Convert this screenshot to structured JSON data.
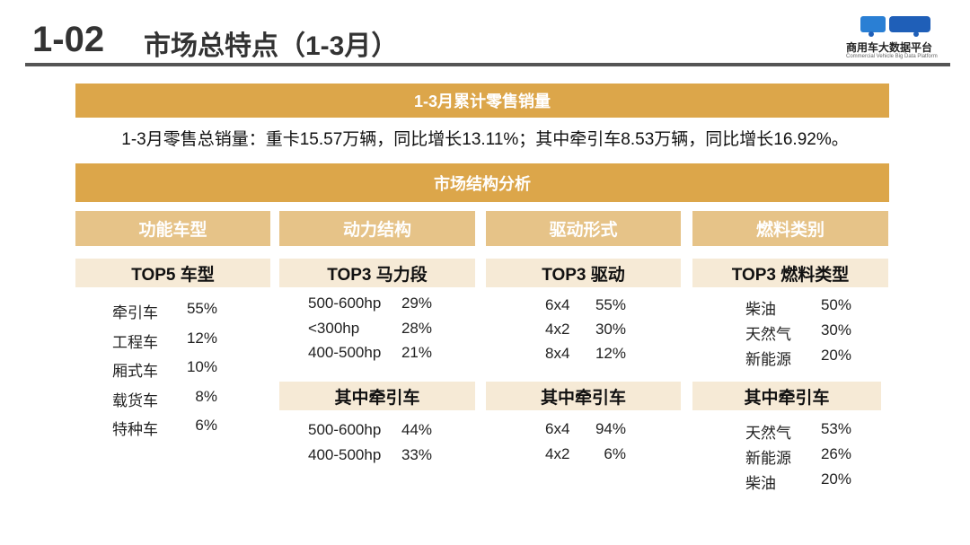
{
  "header": {
    "number": "1-02",
    "title": "市场总特点（1-3月）",
    "logo_text": "商用车大数据平台",
    "logo_subtext": "Commercial Vehicle Big Data Platform"
  },
  "banner1": "1-3月累计零售销量",
  "summary": "1-3月零售总销量：重卡15.57万辆，同比增长13.11%；其中牵引车8.53万辆，同比增长16.92%。",
  "banner2": "市场结构分析",
  "colors": {
    "banner": "#dca64a",
    "column_header": "#e6c388",
    "subheader": "#f6ead6"
  },
  "columns": [
    {
      "header": "功能车型",
      "sub1": "TOP5 车型",
      "list1": [
        [
          "牵引车",
          "55%"
        ],
        [
          "工程车",
          "12%"
        ],
        [
          "厢式车",
          "10%"
        ],
        [
          "载货车",
          "8%"
        ],
        [
          "特种车",
          "6%"
        ]
      ]
    },
    {
      "header": "动力结构",
      "sub1": "TOP3 马力段",
      "list1": [
        [
          "500-600hp",
          "29%"
        ],
        [
          "<300hp",
          "28%"
        ],
        [
          "400-500hp",
          "21%"
        ]
      ],
      "sub2": "其中牵引车",
      "list2": [
        [
          "500-600hp",
          "44%"
        ],
        [
          "400-500hp",
          "33%"
        ]
      ]
    },
    {
      "header": "驱动形式",
      "sub1": "TOP3 驱动",
      "list1": [
        [
          "6x4",
          "55%"
        ],
        [
          "4x2",
          "30%"
        ],
        [
          "8x4",
          "12%"
        ]
      ],
      "sub2": "其中牵引车",
      "list2": [
        [
          "6x4",
          "94%"
        ],
        [
          "4x2",
          "6%"
        ]
      ]
    },
    {
      "header": "燃料类别",
      "sub1": "TOP3 燃料类型",
      "list1": [
        [
          "柴油",
          "50%"
        ],
        [
          "天然气",
          "30%"
        ],
        [
          "新能源",
          "20%"
        ]
      ],
      "sub2": "其中牵引车",
      "list2": [
        [
          "天然气",
          "53%"
        ],
        [
          "新能源",
          "26%"
        ],
        [
          "柴油",
          "20%"
        ]
      ]
    }
  ]
}
